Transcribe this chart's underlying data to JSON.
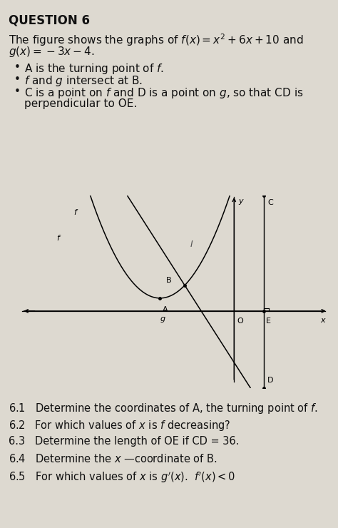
{
  "title": "QUESTION 6",
  "bg_color": "#ddd9d0",
  "text_color": "#000000",
  "intro_line1": "The figure shows the graphs of $f(x) = x^2 + 6x + 10$ and",
  "intro_line2": "$g(x) = -3x - 4$.",
  "bullet1": "A is the turning point of $f$.",
  "bullet2": "$f$ and $g$ intersect at B.",
  "bullet3a": "C is a point on $f$ and D is a point on $g$, so that CD is",
  "bullet3b": "perpendicular to OE.",
  "q61": "6.1   Determine the coordinates of A, the turning point of $f$.",
  "q62": "6.2   For which values of $x$ is $f$ decreasing?",
  "q63": "6.3   Determine the length of OE if CD = 36.",
  "q64": "6.4   Determine the $x$ —coordinate of B.",
  "q65": "6.5   For which values of $x$ is $g'(x)$.  $f'(x) < 0$",
  "f_label": "$f$",
  "g_label": "$g$",
  "label_I": "$I$",
  "x_label": "$x$",
  "y_label": "$y$",
  "A_label": "A",
  "B_label": "B",
  "C_label": "C",
  "D_label": "D",
  "O_label": "O",
  "E_label": "E"
}
